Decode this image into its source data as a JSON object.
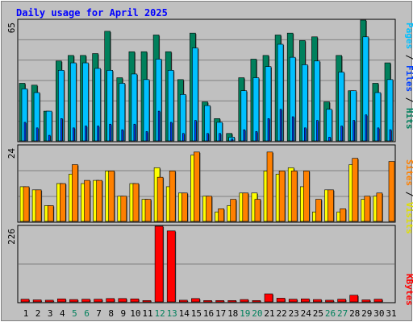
{
  "title": "Daily usage for April 2025",
  "colors": {
    "background": "#c0c0c0",
    "panel": "#c0c0c0",
    "title": "#0000ff",
    "hits": "#00805c",
    "files": "#00c0ff",
    "pages": "#0040ff",
    "visits": "#ffff00",
    "sites": "#ff8000",
    "kbytes": "#ff0000",
    "weekend": "#00805c",
    "weekday": "#000000",
    "grid": "#808080"
  },
  "chart_data": [
    {
      "type": "bar",
      "panel": "top",
      "ymax": 65,
      "ymax_label": "65",
      "legend": [
        "Pages",
        "Files",
        "Hits"
      ],
      "categories": [
        "1",
        "2",
        "3",
        "4",
        "5",
        "6",
        "7",
        "8",
        "9",
        "10",
        "11",
        "12",
        "13",
        "14",
        "15",
        "16",
        "17",
        "18",
        "19",
        "20",
        "21",
        "22",
        "23",
        "24",
        "25",
        "26",
        "27",
        "28",
        "29",
        "30",
        "31"
      ],
      "series": [
        {
          "name": "Hits",
          "values": [
            31,
            30,
            16,
            43,
            46,
            46,
            47,
            59,
            34,
            48,
            48,
            57,
            48,
            33,
            58,
            21,
            12,
            4,
            34,
            44,
            46,
            57,
            58,
            54,
            56,
            21,
            46,
            27,
            65,
            31,
            42
          ]
        },
        {
          "name": "Files",
          "values": [
            28,
            26,
            16,
            38,
            42,
            42,
            39,
            38,
            31,
            36,
            33,
            44,
            38,
            25,
            50,
            19,
            10,
            2,
            27,
            34,
            40,
            52,
            45,
            41,
            43,
            17,
            37,
            27,
            56,
            26,
            33
          ]
        },
        {
          "name": "Pages",
          "values": [
            10,
            7,
            3,
            12,
            7,
            8,
            8,
            9,
            6,
            9,
            5,
            16,
            10,
            4,
            11,
            4,
            4,
            1,
            6,
            5,
            12,
            17,
            13,
            7,
            11,
            2,
            8,
            11,
            14,
            7,
            6
          ]
        }
      ]
    },
    {
      "type": "bar",
      "panel": "middle",
      "ymax": 24,
      "ymax_label": "24",
      "legend": [
        "Sites",
        "Visits"
      ],
      "categories": [
        "1",
        "2",
        "3",
        "4",
        "5",
        "6",
        "7",
        "8",
        "9",
        "10",
        "11",
        "12",
        "13",
        "14",
        "15",
        "16",
        "17",
        "18",
        "19",
        "20",
        "21",
        "22",
        "23",
        "24",
        "25",
        "26",
        "27",
        "28",
        "29",
        "30",
        "31"
      ],
      "series": [
        {
          "name": "Visits",
          "values": [
            11,
            10,
            5,
            12,
            15,
            12,
            13,
            16,
            8,
            12,
            7,
            17,
            11,
            9,
            21,
            8,
            3,
            5,
            9,
            9,
            16,
            15,
            17,
            11,
            3,
            10,
            3,
            18,
            7,
            8,
            0
          ]
        },
        {
          "name": "Sites",
          "values": [
            11,
            10,
            5,
            12,
            18,
            13,
            13,
            16,
            8,
            12,
            7,
            14,
            16,
            9,
            22,
            8,
            4,
            7,
            9,
            7,
            22,
            16,
            16,
            16,
            7,
            10,
            4,
            20,
            8,
            9,
            19
          ]
        }
      ]
    },
    {
      "type": "bar",
      "panel": "bottom",
      "ymax": 226,
      "ymax_label": "226",
      "legend": [
        "KBytes"
      ],
      "categories": [
        "1",
        "2",
        "3",
        "4",
        "5",
        "6",
        "7",
        "8",
        "9",
        "10",
        "11",
        "12",
        "13",
        "14",
        "15",
        "16",
        "17",
        "18",
        "19",
        "20",
        "21",
        "22",
        "23",
        "24",
        "25",
        "26",
        "27",
        "28",
        "29",
        "30",
        "31"
      ],
      "series": [
        {
          "name": "KBytes",
          "values": [
            8,
            6,
            5,
            9,
            7,
            8,
            8,
            10,
            10,
            9,
            4,
            226,
            212,
            5,
            10,
            4,
            4,
            4,
            7,
            4,
            24,
            11,
            8,
            9,
            7,
            5,
            8,
            20,
            6,
            8,
            0
          ]
        }
      ]
    }
  ],
  "x_axis": {
    "labels": [
      "1",
      "2",
      "3",
      "4",
      "5",
      "6",
      "7",
      "8",
      "9",
      "10",
      "11",
      "12",
      "13",
      "14",
      "15",
      "16",
      "17",
      "18",
      "19",
      "20",
      "21",
      "22",
      "23",
      "24",
      "25",
      "26",
      "27",
      "28",
      "29",
      "30",
      "31"
    ],
    "weekend_days": [
      5,
      6,
      12,
      13,
      19,
      20,
      26,
      27
    ]
  }
}
